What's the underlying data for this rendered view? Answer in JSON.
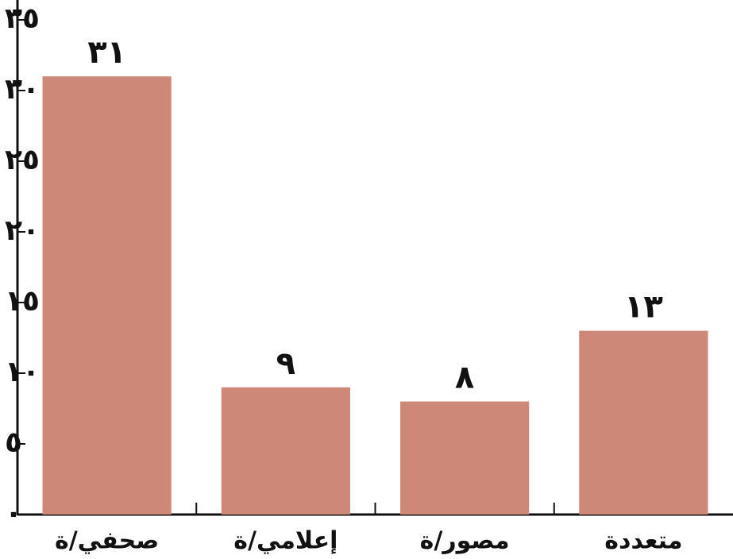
{
  "chart_data": {
    "type": "bar",
    "categories": [
      "صحفي/ة",
      "إعلامي/ة",
      "مصور/ة",
      "متعددة"
    ],
    "values": [
      31,
      9,
      8,
      13
    ],
    "value_labels": [
      "٣١",
      "٩",
      "٨",
      "١٣"
    ],
    "color": "#cd8878",
    "ylim": [
      0,
      35
    ],
    "yticks": [
      {
        "value": 0,
        "label": "٠"
      },
      {
        "value": 5,
        "label": "٥"
      },
      {
        "value": 10,
        "label": "١٠"
      },
      {
        "value": 15,
        "label": "١٥"
      },
      {
        "value": 20,
        "label": "٢٠"
      },
      {
        "value": 25,
        "label": "٢٥"
      },
      {
        "value": 30,
        "label": "٣٠"
      },
      {
        "value": 35,
        "label": "٣٥"
      }
    ],
    "grid": false
  }
}
